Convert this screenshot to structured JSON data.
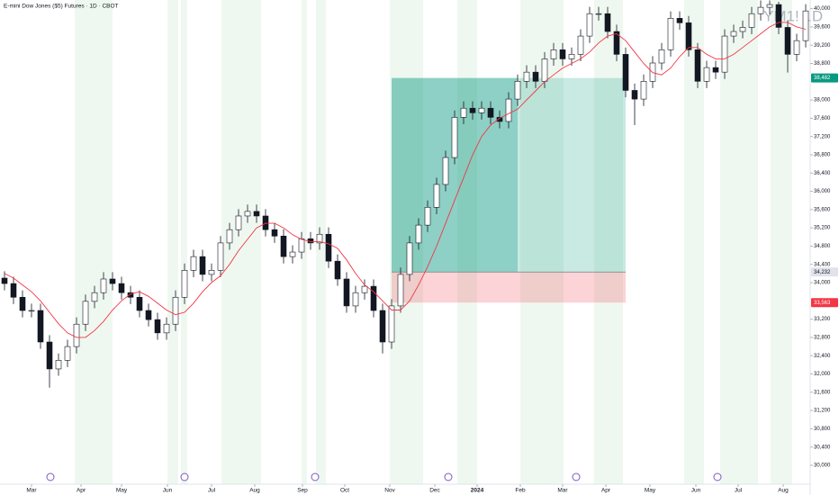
{
  "chart_data": {
    "type": "candlestick",
    "title": "E-mini Dow Jones ($5) Futures · 1D · CBOT",
    "watermark": "YM1! 1D",
    "up_color": "#ffffff",
    "down_color": "#131722",
    "wick_color": "#131722",
    "open": [
      34100,
      33980,
      33680,
      33390,
      33390,
      32700,
      32110,
      32300,
      32600,
      33090,
      33590,
      33780,
      34080,
      33980,
      33780,
      33680,
      33390,
      33190,
      32900,
      33090,
      33680,
      34270,
      34570,
      34180,
      34270,
      34870,
      35160,
      35460,
      35560,
      35460,
      35160,
      35020,
      34570,
      34670,
      34960,
      34870,
      35060,
      34470,
      34080,
      33490,
      33780,
      33920,
      33390,
      32700,
      33490,
      34180,
      34870,
      35260,
      35650,
      36150,
      36740,
      37620,
      37820,
      37720,
      37820,
      37620,
      37530,
      38020,
      38410,
      38610,
      38410,
      38900,
      39100,
      38900,
      39000,
      39400,
      39890,
      39890,
      39500,
      39000,
      38210,
      38020,
      38410,
      38810,
      39100,
      39790,
      39690,
      39100,
      38410,
      38710,
      38610,
      39400,
      39500,
      39590,
      39890,
      40030,
      40090,
      39590,
      39000,
      39300
    ],
    "high": [
      34250,
      34130,
      33830,
      33540,
      33540,
      32850,
      32450,
      32750,
      33240,
      33740,
      33930,
      34230,
      34230,
      34130,
      33930,
      33830,
      33540,
      33340,
      33240,
      33830,
      34420,
      34720,
      34720,
      34420,
      35020,
      35310,
      35610,
      35710,
      35710,
      35610,
      35310,
      35170,
      34820,
      35110,
      35110,
      35210,
      35210,
      34620,
      34230,
      33930,
      34070,
      34070,
      33540,
      33640,
      34330,
      35020,
      35410,
      35800,
      36300,
      36890,
      37770,
      37970,
      37970,
      37970,
      37970,
      37770,
      38170,
      38560,
      38760,
      38760,
      39050,
      39250,
      39250,
      39150,
      39550,
      40040,
      40040,
      40040,
      39650,
      39150,
      38360,
      38560,
      38960,
      39250,
      39940,
      39940,
      39840,
      39250,
      38860,
      38860,
      39550,
      39650,
      39740,
      40040,
      40180,
      40180,
      40150,
      39740,
      39450,
      40100
    ],
    "low": [
      33830,
      33530,
      33240,
      33240,
      32550,
      31700,
      31960,
      32150,
      32450,
      32940,
      33440,
      33630,
      33830,
      33630,
      33530,
      33240,
      33040,
      32750,
      32750,
      32940,
      33530,
      34120,
      34030,
      34030,
      34120,
      34720,
      35010,
      35310,
      35310,
      35010,
      34870,
      34420,
      34420,
      34520,
      34720,
      34720,
      34320,
      33930,
      33340,
      33340,
      33630,
      33240,
      32450,
      32550,
      33340,
      34030,
      34720,
      35110,
      35500,
      36000,
      36590,
      37470,
      37570,
      37570,
      37470,
      37380,
      37380,
      37870,
      38260,
      38260,
      38260,
      38750,
      38750,
      38750,
      38850,
      39250,
      39740,
      39350,
      38850,
      38060,
      37450,
      37870,
      38260,
      38660,
      38950,
      39540,
      38950,
      38260,
      38260,
      38460,
      38460,
      39250,
      39350,
      39440,
      39740,
      39880,
      39440,
      38600,
      38850,
      39150
    ],
    "close": [
      33980,
      33680,
      33390,
      33390,
      32700,
      32110,
      32300,
      32600,
      33090,
      33590,
      33780,
      34080,
      33980,
      33780,
      33680,
      33390,
      33190,
      32900,
      33090,
      33680,
      34270,
      34570,
      34180,
      34270,
      34870,
      35160,
      35460,
      35560,
      35460,
      35160,
      35020,
      34570,
      34670,
      34960,
      34870,
      35060,
      34470,
      34080,
      33490,
      33780,
      33920,
      33390,
      32700,
      33490,
      34180,
      34870,
      35260,
      35650,
      36150,
      36740,
      37620,
      37820,
      37720,
      37820,
      37620,
      37530,
      38020,
      38410,
      38610,
      38410,
      38900,
      39100,
      38900,
      39000,
      39400,
      39890,
      39890,
      39500,
      39000,
      38210,
      38020,
      38410,
      38810,
      39100,
      39790,
      39690,
      39100,
      38410,
      38710,
      38610,
      39400,
      39500,
      39590,
      39890,
      40030,
      40090,
      39590,
      39000,
      39300,
      39950
    ],
    "ma": {
      "color": "#f23645",
      "values": [
        34200,
        34100,
        33950,
        33800,
        33600,
        33350,
        33100,
        32900,
        32800,
        32800,
        32950,
        33150,
        33400,
        33600,
        33750,
        33800,
        33700,
        33550,
        33400,
        33300,
        33350,
        33550,
        33800,
        34000,
        34150,
        34400,
        34700,
        34950,
        35200,
        35300,
        35300,
        35200,
        35050,
        34950,
        34900,
        34900,
        34850,
        34750,
        34500,
        34200,
        33950,
        33800,
        33600,
        33400,
        33400,
        33600,
        33950,
        34350,
        34800,
        35300,
        35800,
        36300,
        36800,
        37200,
        37450,
        37600,
        37700,
        37800,
        38000,
        38200,
        38400,
        38550,
        38700,
        38800,
        38900,
        39050,
        39250,
        39400,
        39450,
        39300,
        39050,
        38800,
        38600,
        38550,
        38700,
        38950,
        39150,
        39150,
        39000,
        38900,
        38900,
        39000,
        39150,
        39300,
        39450,
        39600,
        39700,
        39700,
        39600,
        39550
      ]
    },
    "position": {
      "entry": {
        "value": 34232,
        "label": "34,232"
      },
      "target": {
        "value": 38482,
        "label": "38,482"
      },
      "stop": {
        "value": 33563,
        "label": "33,563"
      },
      "start": 43,
      "end": 69,
      "progress_end": 57,
      "profit_color": "#089981",
      "loss_color": "#f23645",
      "entry_color": "#787b86"
    },
    "ylim": [
      29645,
      40190
    ],
    "yticks": [
      {
        "value": 30000,
        "label": "30,000"
      },
      {
        "value": 30400,
        "label": "30,400"
      },
      {
        "value": 30800,
        "label": "30,800"
      },
      {
        "value": 31200,
        "label": "31,200"
      },
      {
        "value": 31600,
        "label": "31,600"
      },
      {
        "value": 32000,
        "label": "32,000"
      },
      {
        "value": 32400,
        "label": "32,400"
      },
      {
        "value": 32800,
        "label": "32,800"
      },
      {
        "value": 33200,
        "label": "33,200"
      },
      {
        "value": 34000,
        "label": "34,000"
      },
      {
        "value": 34400,
        "label": "34,400"
      },
      {
        "value": 34800,
        "label": "34,800"
      },
      {
        "value": 35200,
        "label": "35,200"
      },
      {
        "value": 35600,
        "label": "35,600"
      },
      {
        "value": 36000,
        "label": "36,000"
      },
      {
        "value": 36400,
        "label": "36,400"
      },
      {
        "value": 36800,
        "label": "36,800"
      },
      {
        "value": 37200,
        "label": "37,200"
      },
      {
        "value": 37600,
        "label": "37,600"
      },
      {
        "value": 38000,
        "label": "38,000"
      },
      {
        "value": 38800,
        "label": "38,800"
      },
      {
        "value": 39200,
        "label": "39,200"
      },
      {
        "value": 39600,
        "label": "39,600"
      },
      {
        "value": 40000,
        "label": "40,000"
      }
    ],
    "xticks": [
      {
        "value": 3,
        "label": "Mar"
      },
      {
        "value": 8.5,
        "label": "Apr"
      },
      {
        "value": 13,
        "label": "May"
      },
      {
        "value": 18.1,
        "label": "Jun"
      },
      {
        "value": 23,
        "label": "Jul"
      },
      {
        "value": 27.8,
        "label": "Aug"
      },
      {
        "value": 33.1,
        "label": "Sep"
      },
      {
        "value": 37.8,
        "label": "Oct"
      },
      {
        "value": 42.8,
        "label": "Nov"
      },
      {
        "value": 47.8,
        "label": "Dec"
      },
      {
        "value": 52.5,
        "label": "2024"
      },
      {
        "value": 57.3,
        "label": "Feb"
      },
      {
        "value": 62,
        "label": "Mar"
      },
      {
        "value": 66.8,
        "label": "Apr"
      },
      {
        "value": 71.7,
        "label": "May"
      },
      {
        "value": 76.8,
        "label": "Jun"
      },
      {
        "value": 81.5,
        "label": "Jul"
      },
      {
        "value": 86.5,
        "label": "Aug"
      }
    ]
  }
}
